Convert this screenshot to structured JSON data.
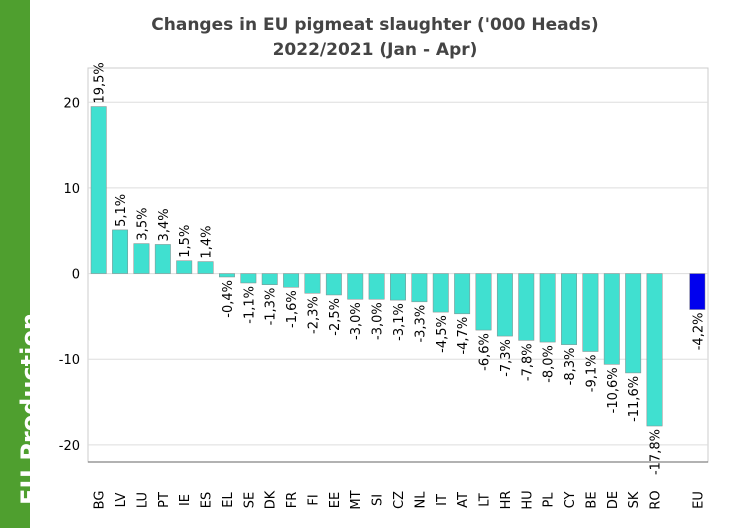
{
  "sidebar_label": "EU Production",
  "chart_data": {
    "type": "bar",
    "title": "Changes in EU pigmeat slaughter ('000 Heads)",
    "subtitle": "2022/2021 (Jan - Apr)",
    "categories": [
      "BG",
      "LV",
      "LU",
      "PT",
      "IE",
      "ES",
      "EL",
      "SE",
      "DK",
      "FR",
      "FI",
      "EE",
      "MT",
      "SI",
      "CZ",
      "NL",
      "IT",
      "AT",
      "LT",
      "HR",
      "HU",
      "PL",
      "CY",
      "BE",
      "DE",
      "SK",
      "RO",
      null,
      "EU"
    ],
    "values": [
      19.5,
      5.1,
      3.5,
      3.4,
      1.5,
      1.4,
      -0.4,
      -1.1,
      -1.3,
      -1.6,
      -2.3,
      -2.5,
      -3.0,
      -3.0,
      -3.1,
      -3.3,
      -4.5,
      -4.7,
      -6.6,
      -7.3,
      -7.8,
      -8.0,
      -8.3,
      -9.1,
      -10.6,
      -11.6,
      -17.8,
      null,
      -4.2
    ],
    "value_labels": [
      "19,5%",
      "5,1%",
      "3,5%",
      "3,4%",
      "1,5%",
      "1,4%",
      "-0,4%",
      "-1,1%",
      "-1,3%",
      "-1,6%",
      "-2,3%",
      "-2,5%",
      "-3,0%",
      "-3,0%",
      "-3,1%",
      "-3,3%",
      "-4,5%",
      "-4,7%",
      "-6,6%",
      "-7,3%",
      "-7,8%",
      "-8,0%",
      "-8,3%",
      "-9,1%",
      "-10,6%",
      "-11,6%",
      "-17,8%",
      null,
      "-4,2%"
    ],
    "colors": [
      "#40e0d0",
      "#40e0d0",
      "#40e0d0",
      "#40e0d0",
      "#40e0d0",
      "#40e0d0",
      "#40e0d0",
      "#40e0d0",
      "#40e0d0",
      "#40e0d0",
      "#40e0d0",
      "#40e0d0",
      "#40e0d0",
      "#40e0d0",
      "#40e0d0",
      "#40e0d0",
      "#40e0d0",
      "#40e0d0",
      "#40e0d0",
      "#40e0d0",
      "#40e0d0",
      "#40e0d0",
      "#40e0d0",
      "#40e0d0",
      "#40e0d0",
      "#40e0d0",
      "#40e0d0",
      null,
      "#0000ee"
    ],
    "ylim": [
      -22,
      24
    ],
    "yticks": [
      -20,
      -10,
      0,
      10,
      20
    ],
    "grid": true
  }
}
